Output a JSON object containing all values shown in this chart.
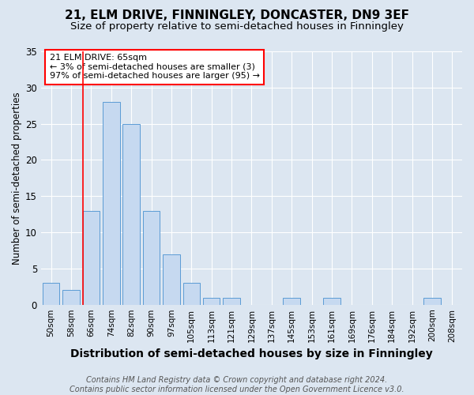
{
  "title": "21, ELM DRIVE, FINNINGLEY, DONCASTER, DN9 3EF",
  "subtitle": "Size of property relative to semi-detached houses in Finningley",
  "xlabel": "Distribution of semi-detached houses by size in Finningley",
  "ylabel": "Number of semi-detached properties",
  "footer_line1": "Contains HM Land Registry data © Crown copyright and database right 2024.",
  "footer_line2": "Contains public sector information licensed under the Open Government Licence v3.0.",
  "annotation_line1": "21 ELM DRIVE: 65sqm",
  "annotation_line2": "← 3% of semi-detached houses are smaller (3)",
  "annotation_line3": "97% of semi-detached houses are larger (95) →",
  "bar_labels": [
    "50sqm",
    "58sqm",
    "66sqm",
    "74sqm",
    "82sqm",
    "90sqm",
    "97sqm",
    "105sqm",
    "113sqm",
    "121sqm",
    "129sqm",
    "137sqm",
    "145sqm",
    "153sqm",
    "161sqm",
    "169sqm",
    "176sqm",
    "184sqm",
    "192sqm",
    "200sqm",
    "208sqm"
  ],
  "bar_values": [
    3,
    2,
    13,
    28,
    25,
    13,
    7,
    3,
    1,
    1,
    0,
    0,
    1,
    0,
    1,
    0,
    0,
    0,
    0,
    1,
    0
  ],
  "bar_color": "#c6d9f0",
  "bar_edge_color": "#5b9bd5",
  "vline_index": 2,
  "ylim": [
    0,
    35
  ],
  "background_color": "#dce6f1",
  "plot_bg_color": "#dce6f1",
  "grid_color": "#ffffff",
  "title_fontsize": 11,
  "subtitle_fontsize": 9.5,
  "xlabel_fontsize": 10,
  "ylabel_fontsize": 8.5,
  "tick_fontsize": 7.5,
  "annotation_fontsize": 8,
  "footer_fontsize": 7
}
